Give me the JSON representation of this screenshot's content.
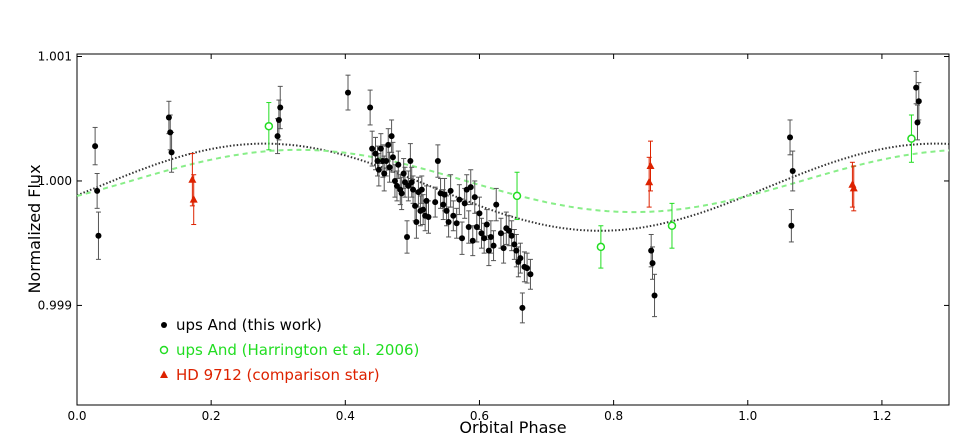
{
  "chart_data": {
    "type": "scatter",
    "title": "",
    "xlabel": "Orbital Phase",
    "ylabel": "Normalized Flux",
    "xlim": [
      0.0,
      1.3
    ],
    "ylim": [
      0.9982,
      1.00102
    ],
    "xticks": [
      0.0,
      0.2,
      0.4,
      0.6,
      0.8,
      1.0,
      1.2
    ],
    "xtick_labels": [
      "0.0",
      "0.2",
      "0.4",
      "0.6",
      "0.8",
      "1.0",
      "1.2"
    ],
    "yticks": [
      0.999,
      1.0,
      1.001
    ],
    "ytick_labels": [
      "0.999",
      "1.000",
      "1.001"
    ],
    "grid": false,
    "legend_position": "lower-left",
    "colors": {
      "this_work": "#000000",
      "harrington": "#22dd22",
      "comparison": "#dd2200",
      "fit_black": "#333333",
      "fit_green": "#88ee88"
    },
    "curves": [
      {
        "series": "this_work",
        "style": "dotted",
        "color": "#333333",
        "center": 0.99995,
        "amplitude": 0.00035,
        "peak_phase": 0.28
      },
      {
        "series": "harrington",
        "style": "dashed",
        "color": "#88ee88",
        "center": 1.0,
        "amplitude": 0.00025,
        "peak_phase": 0.33
      }
    ],
    "series": [
      {
        "key": "this_work",
        "name": "ups And (this work)",
        "marker": "filled-circle",
        "color": "#000000",
        "points": [
          [
            0.027,
            1.00028,
            0.00015
          ],
          [
            0.03,
            0.99992,
            0.00014
          ],
          [
            0.032,
            0.99956,
            0.00019
          ],
          [
            0.137,
            1.00051,
            0.00013
          ],
          [
            0.139,
            1.00039,
            0.00014
          ],
          [
            0.141,
            1.00023,
            0.00016
          ],
          [
            0.299,
            1.00036,
            0.00014
          ],
          [
            0.301,
            1.00049,
            0.00016
          ],
          [
            0.303,
            1.00059,
            0.00017
          ],
          [
            0.404,
            1.00071,
            0.00014
          ],
          [
            0.437,
            1.00059,
            0.00014
          ],
          [
            0.44,
            1.00026,
            0.00014
          ],
          [
            0.445,
            1.00022,
            0.00013
          ],
          [
            0.448,
            1.00016,
            0.00012
          ],
          [
            0.45,
            1.00009,
            0.00013
          ],
          [
            0.453,
            1.00026,
            0.00012
          ],
          [
            0.456,
            1.00016,
            0.00013
          ],
          [
            0.458,
            1.00006,
            0.00014
          ],
          [
            0.461,
            1.00016,
            0.00012
          ],
          [
            0.464,
            1.00029,
            0.00013
          ],
          [
            0.466,
            1.00011,
            0.00012
          ],
          [
            0.469,
            1.00036,
            0.00013
          ],
          [
            0.471,
            1.00019,
            0.00012
          ],
          [
            0.474,
            1.0,
            0.00013
          ],
          [
            0.477,
            0.99996,
            0.00012
          ],
          [
            0.479,
            1.00013,
            0.00011
          ],
          [
            0.482,
            0.99993,
            0.00012
          ],
          [
            0.484,
            0.9999,
            0.00013
          ],
          [
            0.487,
            1.00006,
            0.00012
          ],
          [
            0.489,
            0.99999,
            0.00012
          ],
          [
            0.492,
            0.99955,
            0.00013
          ],
          [
            0.494,
            0.99996,
            0.00012
          ],
          [
            0.497,
            1.00016,
            0.00014
          ],
          [
            0.499,
            0.99999,
            0.00012
          ],
          [
            0.501,
            0.99993,
            0.00011
          ],
          [
            0.504,
            0.9998,
            0.00012
          ],
          [
            0.506,
            0.99967,
            0.00013
          ],
          [
            0.509,
            0.99991,
            0.00012
          ],
          [
            0.512,
            0.99976,
            0.00012
          ],
          [
            0.514,
            0.99993,
            0.00011
          ],
          [
            0.516,
            0.99977,
            0.00012
          ],
          [
            0.519,
            0.99972,
            0.00012
          ],
          [
            0.521,
            0.99984,
            0.00012
          ],
          [
            0.524,
            0.99971,
            0.00013
          ],
          [
            0.534,
            0.99983,
            0.00012
          ],
          [
            0.538,
            1.00016,
            0.00013
          ],
          [
            0.542,
            0.9999,
            0.00012
          ],
          [
            0.546,
            0.99981,
            0.00012
          ],
          [
            0.548,
            0.99989,
            0.00013
          ],
          [
            0.551,
            0.99976,
            0.00012
          ],
          [
            0.554,
            0.99967,
            0.00012
          ],
          [
            0.557,
            0.99992,
            0.00013
          ],
          [
            0.561,
            0.99972,
            0.00012
          ],
          [
            0.566,
            0.99966,
            0.00012
          ],
          [
            0.57,
            0.99985,
            0.00012
          ],
          [
            0.574,
            0.99954,
            0.00013
          ],
          [
            0.578,
            0.99982,
            0.00012
          ],
          [
            0.581,
            0.99993,
            0.00012
          ],
          [
            0.584,
            0.99963,
            0.00013
          ],
          [
            0.587,
            0.99995,
            0.00014
          ],
          [
            0.59,
            0.99952,
            0.00012
          ],
          [
            0.593,
            0.99987,
            0.00013
          ],
          [
            0.596,
            0.99963,
            0.00012
          ],
          [
            0.6,
            0.99974,
            0.00013
          ],
          [
            0.603,
            0.99958,
            0.00012
          ],
          [
            0.607,
            0.99954,
            0.00012
          ],
          [
            0.611,
            0.99965,
            0.00012
          ],
          [
            0.614,
            0.99944,
            0.00012
          ],
          [
            0.617,
            0.99955,
            0.00013
          ],
          [
            0.621,
            0.99948,
            0.00012
          ],
          [
            0.625,
            0.99981,
            0.00013
          ],
          [
            0.632,
            0.99958,
            0.00012
          ],
          [
            0.636,
            0.99946,
            0.00012
          ],
          [
            0.64,
            0.99962,
            0.00013
          ],
          [
            0.644,
            0.9996,
            0.00012
          ],
          [
            0.648,
            0.99956,
            0.00012
          ],
          [
            0.652,
            0.99949,
            0.00012
          ],
          [
            0.655,
            0.99944,
            0.00013
          ],
          [
            0.658,
            0.99935,
            0.00012
          ],
          [
            0.661,
            0.99938,
            0.00012
          ],
          [
            0.664,
            0.99898,
            0.00012
          ],
          [
            0.667,
            0.99931,
            0.00012
          ],
          [
            0.671,
            0.9993,
            0.00012
          ],
          [
            0.676,
            0.99925,
            0.00012
          ],
          [
            0.856,
            0.99944,
            0.00013
          ],
          [
            0.858,
            0.99934,
            0.00013
          ],
          [
            0.861,
            0.99908,
            0.00017
          ],
          [
            1.063,
            1.00035,
            0.00014
          ],
          [
            1.065,
            0.99964,
            0.00013
          ],
          [
            1.067,
            1.00008,
            0.00016
          ],
          [
            1.251,
            1.00075,
            0.00013
          ],
          [
            1.253,
            1.00047,
            0.00014
          ],
          [
            1.255,
            1.00064,
            0.00015
          ]
        ]
      },
      {
        "key": "harrington",
        "name": "ups And (Harrington et al. 2006)",
        "marker": "open-circle",
        "color": "#22dd22",
        "points": [
          [
            0.286,
            1.00044,
            0.00019
          ],
          [
            0.656,
            0.99988,
            0.00019
          ],
          [
            0.781,
            0.99947,
            0.00017
          ],
          [
            0.887,
            0.99964,
            0.00018
          ],
          [
            1.244,
            1.00034,
            0.00019
          ]
        ]
      },
      {
        "key": "comparison",
        "name": "HD 9712 (comparison star)",
        "marker": "filled-triangle",
        "color": "#dd2200",
        "points": [
          [
            0.172,
            1.00001,
            0.00021
          ],
          [
            0.174,
            0.99985,
            0.0002
          ],
          [
            0.853,
            0.99999,
            0.0002
          ],
          [
            0.855,
            1.00012,
            0.0002
          ],
          [
            1.156,
            0.99997,
            0.00018
          ],
          [
            1.158,
            0.99994,
            0.00018
          ]
        ]
      }
    ]
  }
}
